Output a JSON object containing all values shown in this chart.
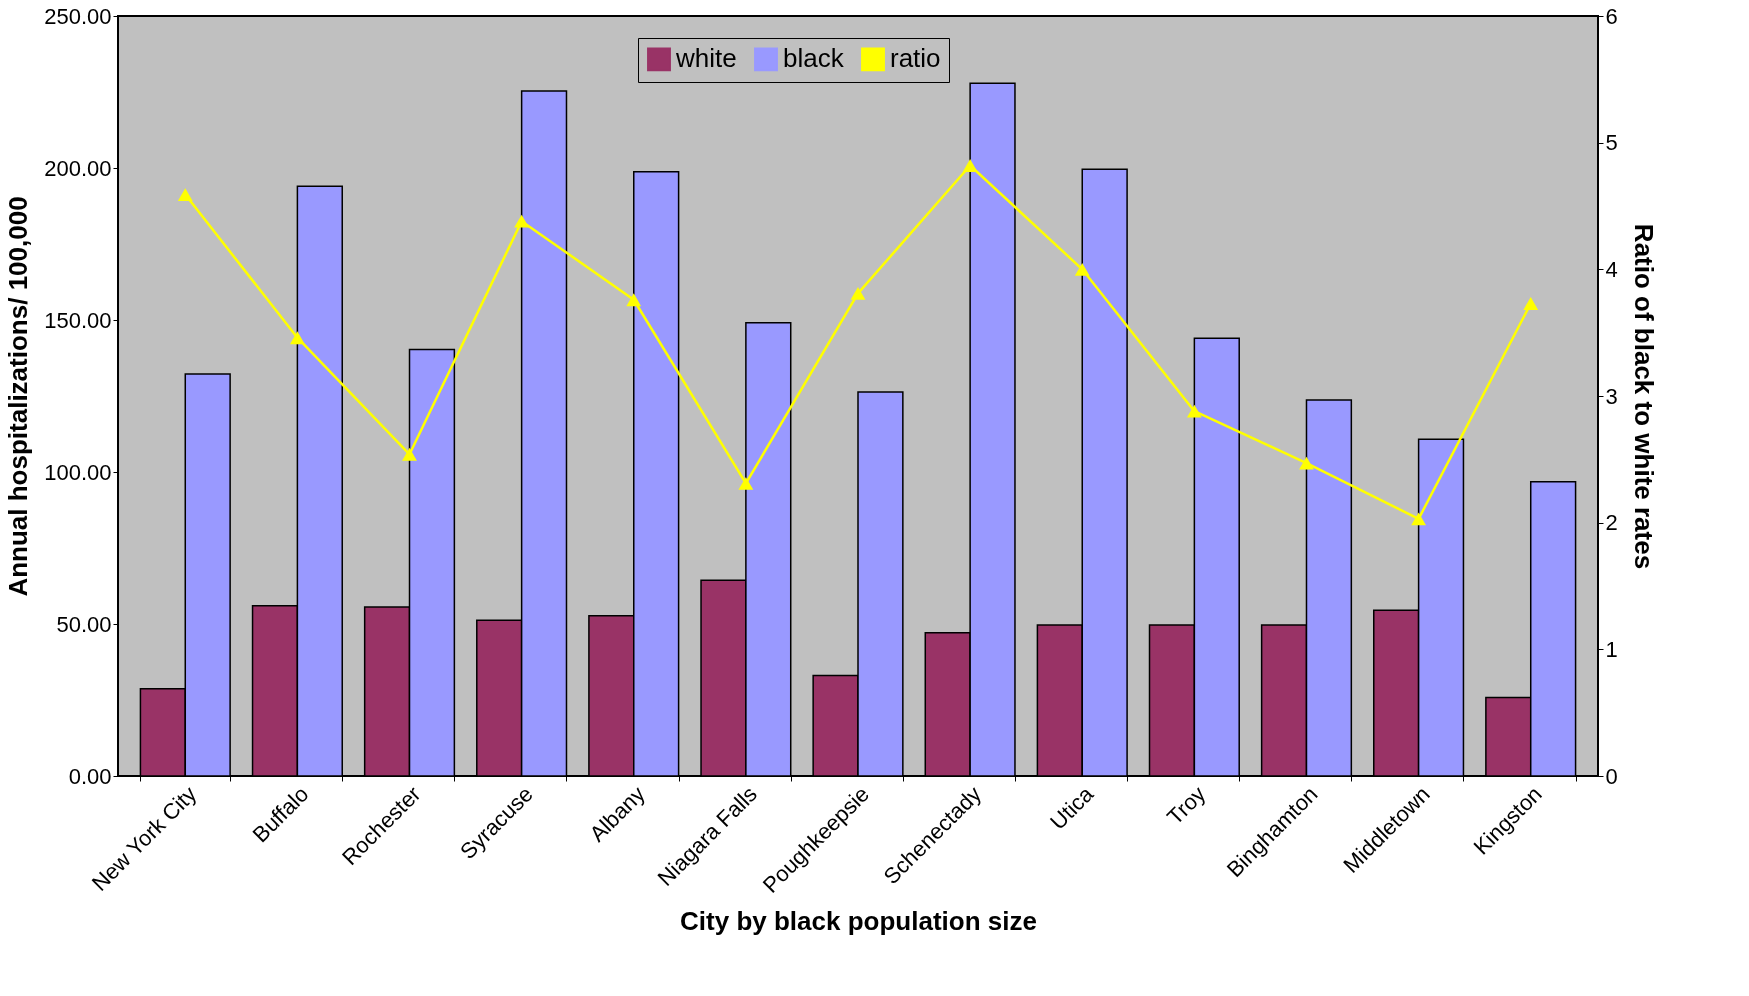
{
  "chart_data": {
    "type": "bar",
    "xlabel": "City by black population size",
    "ylabel": "Annual hospitalizations/ 100,000",
    "y2label": "Ratio of black to white rates",
    "categories": [
      "New York City",
      "Buffalo",
      "Rochester",
      "Syracuse",
      "Albany",
      "Niagara Falls",
      "Poughkeepsie",
      "Schenectady",
      "Utica",
      "Troy",
      "Binghamton",
      "Middletown",
      "Kingston"
    ],
    "series": [
      {
        "name": "white",
        "color": "#993366",
        "values": [
          28.7,
          56,
          55.6,
          51.2,
          52.7,
          64.4,
          33.1,
          47.1,
          49.7,
          49.7,
          49.7,
          54.5,
          25.8
        ]
      },
      {
        "name": "black",
        "color": "#9999ff",
        "values": [
          132.2,
          194,
          140.3,
          225.3,
          198.8,
          149.1,
          126.3,
          227.9,
          199.6,
          144,
          123.7,
          110.8,
          96.8
        ]
      },
      {
        "name": "ratio",
        "color": "#ffff00",
        "type": "line",
        "axis": "y2",
        "marker": "triangle",
        "values": [
          4.59,
          3.46,
          2.54,
          4.38,
          3.76,
          2.31,
          3.81,
          4.82,
          4.0,
          2.88,
          2.47,
          2.03,
          3.73
        ]
      }
    ],
    "ylim": [
      0,
      250
    ],
    "yticks": [
      {
        "value": 0,
        "label": "0.00"
      },
      {
        "value": 50,
        "label": "50.00"
      },
      {
        "value": 100,
        "label": "100.00"
      },
      {
        "value": 150,
        "label": "150.00"
      },
      {
        "value": 200,
        "label": "200.00"
      },
      {
        "value": 250,
        "label": "250.00"
      }
    ],
    "y2lim": [
      0,
      6
    ],
    "y2ticks": [
      0,
      1,
      2,
      3,
      4,
      5,
      6
    ],
    "grid": false,
    "legend": "top"
  }
}
